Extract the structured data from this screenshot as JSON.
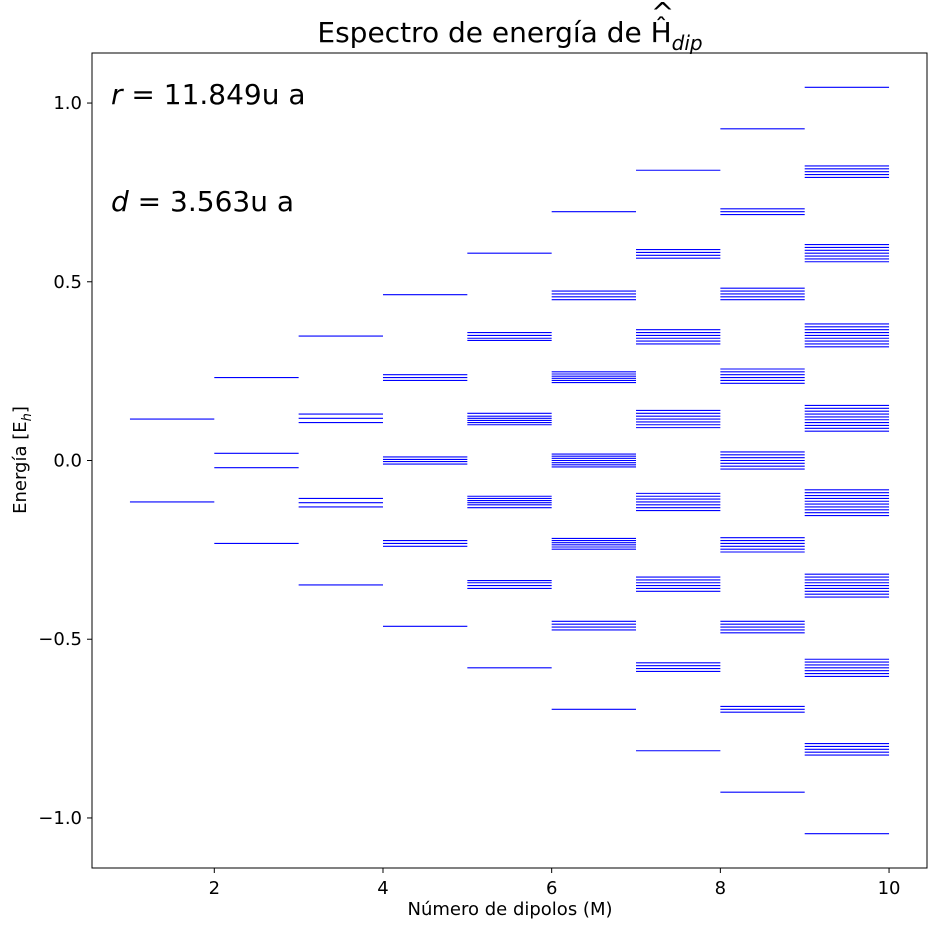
{
  "chart_data": {
    "type": "eventplot",
    "title": "Espectro de energía de Ĥ",
    "title_subscript": "dip",
    "xlabel": "Número de dipolos (M)",
    "ylabel": "Energía [E",
    "ylabel_subscript": "h",
    "ylabel_close": "]",
    "xlim": [
      0.55,
      10.45
    ],
    "ylim": [
      -1.14,
      1.14
    ],
    "xticks": [
      2,
      4,
      6,
      8,
      10
    ],
    "yticks": [
      1.0,
      0.5,
      0.0,
      -0.5,
      -1.0
    ],
    "ytick_labels": [
      "1.0",
      "0.5",
      "0.0",
      "−0.5",
      "−1.0"
    ],
    "line_color": "#0000ff",
    "annotations": [
      {
        "var": "r",
        "text": " = 11.849u a"
      },
      {
        "var": "d",
        "text": " = 3.563u a"
      }
    ],
    "series": [
      {
        "M": 1,
        "energies": [
          0.116,
          -0.116
        ]
      },
      {
        "M": 2,
        "energies": [
          0.232,
          0.02,
          -0.02,
          -0.232
        ]
      },
      {
        "M": 3,
        "energies": [
          0.348,
          0.13,
          0.118,
          0.106,
          -0.106,
          -0.118,
          -0.13,
          -0.348
        ]
      },
      {
        "M": 4,
        "energies": [
          0.464,
          0.24,
          0.232,
          0.224,
          0.01,
          0.003,
          -0.003,
          -0.01,
          -0.224,
          -0.232,
          -0.24,
          -0.464
        ]
      },
      {
        "M": 5,
        "energies": [
          0.58,
          0.358,
          0.35,
          0.342,
          0.336,
          0.132,
          0.124,
          0.118,
          0.112,
          0.106,
          0.1,
          -0.1,
          -0.106,
          -0.112,
          -0.118,
          -0.124,
          -0.132,
          -0.336,
          -0.342,
          -0.35,
          -0.358,
          -0.58
        ]
      },
      {
        "M": 6,
        "energies": [
          0.696,
          0.474,
          0.466,
          0.458,
          0.45,
          0.248,
          0.242,
          0.236,
          0.23,
          0.224,
          0.218,
          0.018,
          0.012,
          0.006,
          0.0,
          -0.006,
          -0.012,
          -0.018,
          -0.218,
          -0.224,
          -0.23,
          -0.236,
          -0.242,
          -0.248,
          -0.45,
          -0.458,
          -0.466,
          -0.474,
          -0.696
        ]
      },
      {
        "M": 7,
        "energies": [
          0.812,
          0.59,
          0.582,
          0.574,
          0.566,
          0.366,
          0.358,
          0.35,
          0.342,
          0.334,
          0.326,
          0.14,
          0.132,
          0.124,
          0.116,
          0.108,
          0.1,
          0.092,
          -0.092,
          -0.1,
          -0.108,
          -0.116,
          -0.124,
          -0.132,
          -0.14,
          -0.326,
          -0.334,
          -0.342,
          -0.35,
          -0.358,
          -0.366,
          -0.566,
          -0.574,
          -0.582,
          -0.59,
          -0.812
        ]
      },
      {
        "M": 8,
        "energies": [
          0.928,
          0.704,
          0.696,
          0.688,
          0.482,
          0.474,
          0.466,
          0.458,
          0.45,
          0.256,
          0.248,
          0.24,
          0.232,
          0.224,
          0.216,
          0.024,
          0.016,
          0.008,
          0.0,
          -0.008,
          -0.016,
          -0.024,
          -0.216,
          -0.224,
          -0.232,
          -0.24,
          -0.248,
          -0.256,
          -0.45,
          -0.458,
          -0.466,
          -0.474,
          -0.482,
          -0.688,
          -0.696,
          -0.704,
          -0.928
        ]
      },
      {
        "M": 9,
        "energies": [
          1.044,
          0.824,
          0.816,
          0.808,
          0.8,
          0.792,
          0.604,
          0.596,
          0.588,
          0.58,
          0.572,
          0.564,
          0.556,
          0.382,
          0.374,
          0.366,
          0.358,
          0.35,
          0.342,
          0.334,
          0.326,
          0.318,
          0.154,
          0.146,
          0.138,
          0.13,
          0.122,
          0.114,
          0.106,
          0.098,
          0.09,
          0.082,
          -0.082,
          -0.09,
          -0.098,
          -0.106,
          -0.114,
          -0.122,
          -0.13,
          -0.138,
          -0.146,
          -0.154,
          -0.318,
          -0.326,
          -0.334,
          -0.342,
          -0.35,
          -0.358,
          -0.366,
          -0.374,
          -0.382,
          -0.556,
          -0.564,
          -0.572,
          -0.58,
          -0.588,
          -0.596,
          -0.604,
          -0.792,
          -0.8,
          -0.808,
          -0.816,
          -0.824,
          -1.044
        ]
      }
    ]
  }
}
